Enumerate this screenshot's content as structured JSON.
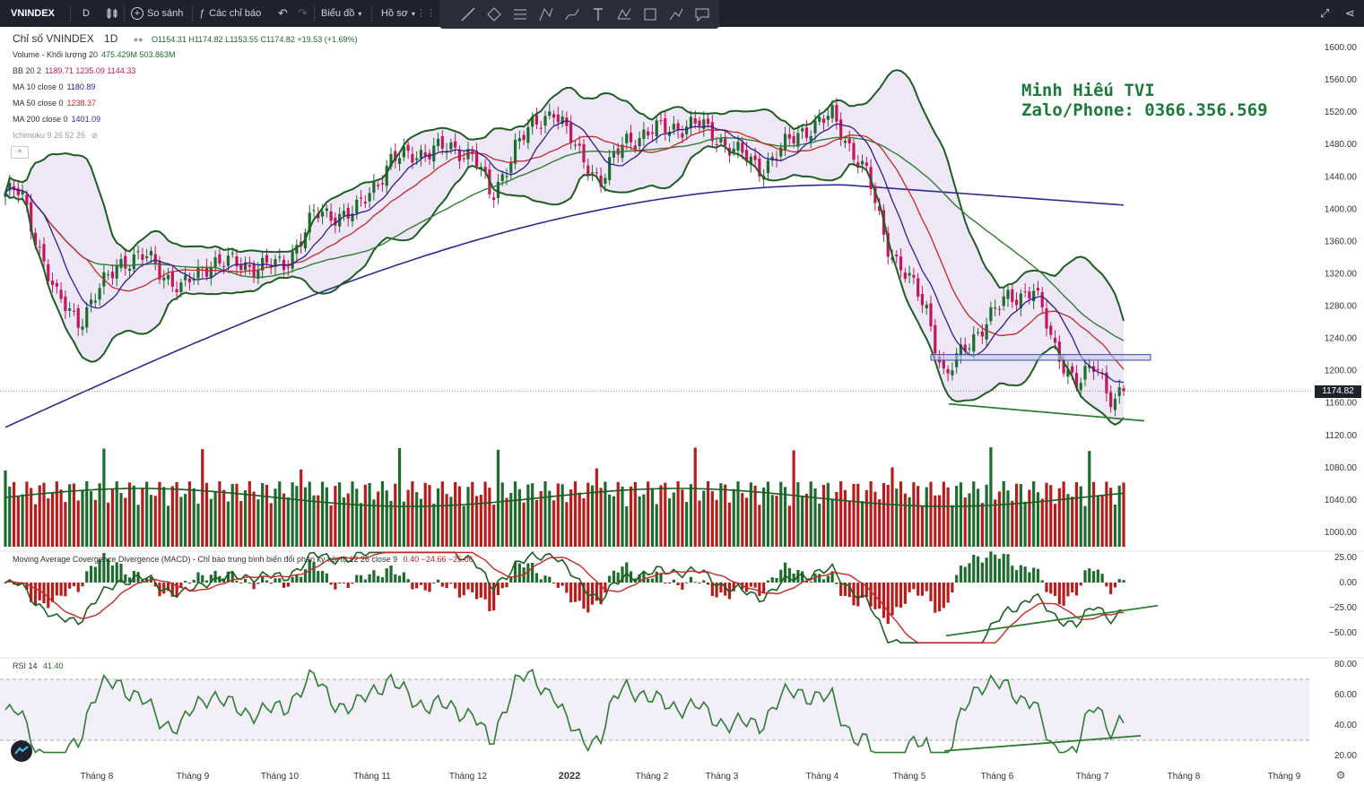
{
  "topbar": {
    "symbol": "VNINDEX",
    "interval": "D",
    "compare_label": "So sánh",
    "indicators_label": "Các chỉ báo",
    "chart_type_label": "Biểu đồ",
    "profile_label": "Hồ sơ"
  },
  "drawing_tools": [
    "trend-line-icon",
    "shape-icon",
    "fib-icon",
    "pattern-icon",
    "brush-icon",
    "text-icon",
    "xabcd-icon",
    "rectangle-icon",
    "projection-icon",
    "comment-icon"
  ],
  "legend": {
    "title": "Chỉ số VNINDEX",
    "interval": "1D",
    "ohlc": "O1154.31 H1174.82 L1153.55 C1174.82 +19.53 (+1.69%)",
    "volume_label": "Volume - Khối lượng 20",
    "volume_values": "475.429M 503.863M",
    "bb_label": "BB 20 2",
    "bb_values": "1189.71 1235.09 1144.33",
    "ma10_label": "MA 10 close 0",
    "ma10_value": "1180.89",
    "ma50_label": "MA 50 close 0",
    "ma50_value": "1238.37",
    "ma200_label": "MA 200 close 0",
    "ma200_value": "1401.09",
    "ichimoku_label": "Ichimoku 9 26 52 26",
    "collapse": "^"
  },
  "macd_legend": {
    "label": "Moving Average Covergence Divergence (MACD) - Chỉ báo trung bình biến đổi phân kỳ hội tụ 12 26 close 9",
    "values": "0.40  −24.66  −25.06"
  },
  "rsi_legend": {
    "label": "RSI 14",
    "value": "41.40"
  },
  "watermark": {
    "line1": "Minh Hiếu TVI",
    "line2": "Zalo/Phone: 0366.356.569"
  },
  "price_tag": "1174.82",
  "price_axis": [
    "1600.00",
    "1560.00",
    "1520.00",
    "1480.00",
    "1440.00",
    "1400.00",
    "1360.00",
    "1320.00",
    "1280.00",
    "1240.00",
    "1200.00",
    "1160.00",
    "1120.00",
    "1080.00",
    "1040.00",
    "1000.00"
  ],
  "macd_axis": [
    "25.00",
    "0.00",
    "−25.00",
    "−50.00"
  ],
  "rsi_axis": [
    "80.00",
    "60.00",
    "40.00",
    "20.00"
  ],
  "time_axis": [
    "Tháng 8",
    "Tháng 9",
    "Tháng 10",
    "Tháng 11",
    "Tháng 12",
    "2022",
    "Tháng 2",
    "Tháng 3",
    "Tháng 4",
    "Tháng 5",
    "Tháng 6",
    "Tháng 7",
    "Tháng 8",
    "Tháng 9"
  ],
  "colors": {
    "up": "#1e6b2e",
    "down": "#c2185b",
    "vol_up": "#1e6b2e",
    "vol_down": "#b71c1c",
    "bb": "#1b5e20",
    "bb_fill": "#ede7f6",
    "ma10": "#311b92",
    "ma50": "#c62828",
    "ma200": "#2e2a8f",
    "trend": "#2e7d32",
    "zone": "#c5cae9"
  },
  "chart_data": {
    "type": "candlestick",
    "symbol": "VNINDEX",
    "timeframe": "1D",
    "last": {
      "open": 1154.31,
      "high": 1174.82,
      "low": 1153.55,
      "close": 1174.82,
      "change": 19.53,
      "change_pct": 1.69
    },
    "price_range": [
      1000,
      1600
    ],
    "close_path": [
      [
        "2021-07-08",
        1420
      ],
      [
        "2021-07-20",
        1290
      ],
      [
        "2021-07-28",
        1262
      ],
      [
        "2021-08-10",
        1335
      ],
      [
        "2021-08-20",
        1340
      ],
      [
        "2021-08-31",
        1300
      ],
      [
        "2021-09-10",
        1335
      ],
      [
        "2021-09-24",
        1330
      ],
      [
        "2021-10-05",
        1330
      ],
      [
        "2021-10-15",
        1392
      ],
      [
        "2021-10-29",
        1395
      ],
      [
        "2021-11-10",
        1460
      ],
      [
        "2021-11-25",
        1475
      ],
      [
        "2021-12-08",
        1470
      ],
      [
        "2021-12-14",
        1410
      ],
      [
        "2021-12-22",
        1480
      ],
      [
        "2022-01-04",
        1525
      ],
      [
        "2022-01-12",
        1470
      ],
      [
        "2022-01-20",
        1435
      ],
      [
        "2022-01-28",
        1485
      ],
      [
        "2022-02-10",
        1500
      ],
      [
        "2022-02-22",
        1505
      ],
      [
        "2022-03-07",
        1470
      ],
      [
        "2022-03-15",
        1450
      ],
      [
        "2022-03-28",
        1495
      ],
      [
        "2022-04-08",
        1515
      ],
      [
        "2022-04-20",
        1440
      ],
      [
        "2022-04-26",
        1360
      ],
      [
        "2022-05-10",
        1275
      ],
      [
        "2022-05-16",
        1190
      ],
      [
        "2022-05-25",
        1240
      ],
      [
        "2022-06-06",
        1290
      ],
      [
        "2022-06-15",
        1300
      ],
      [
        "2022-06-22",
        1230
      ],
      [
        "2022-06-30",
        1180
      ],
      [
        "2022-07-06",
        1210
      ],
      [
        "2022-07-12",
        1160
      ],
      [
        "2022-07-15",
        1174.82
      ]
    ],
    "indicators": {
      "volume": {
        "period": 20,
        "values": [
          475.429,
          503.863
        ]
      },
      "bollinger": {
        "period": 20,
        "mult": 2,
        "basis": 1189.71,
        "upper": 1235.09,
        "lower": 1144.33
      },
      "ma10": 1180.89,
      "ma50": 1238.37,
      "ma200": 1401.09,
      "macd": {
        "fast": 12,
        "slow": 26,
        "signal": 9,
        "histogram": 0.4,
        "macd": -24.66,
        "signal_value": -25.06,
        "range": [
          -60,
          30
        ]
      },
      "rsi": {
        "period": 14,
        "value": 41.4,
        "range": [
          20,
          85
        ]
      }
    },
    "support_zone": [
      1213,
      1220
    ],
    "annotations": [
      "price support zone",
      "price descending trendline",
      "MACD rising trendline",
      "RSI rising trendline"
    ]
  }
}
